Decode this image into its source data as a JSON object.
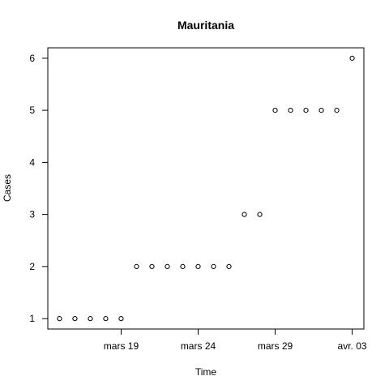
{
  "chart_data": {
    "type": "scatter",
    "title": "Mauritania",
    "xlabel": "Time",
    "ylabel": "Cases",
    "x": [
      "2020-03-15",
      "2020-03-16",
      "2020-03-17",
      "2020-03-18",
      "2020-03-19",
      "2020-03-20",
      "2020-03-21",
      "2020-03-22",
      "2020-03-23",
      "2020-03-24",
      "2020-03-25",
      "2020-03-26",
      "2020-03-27",
      "2020-03-28",
      "2020-03-29",
      "2020-03-30",
      "2020-03-31",
      "2020-04-01",
      "2020-04-02",
      "2020-04-03"
    ],
    "y": [
      1,
      1,
      1,
      1,
      1,
      2,
      2,
      2,
      2,
      2,
      2,
      2,
      3,
      3,
      5,
      5,
      5,
      5,
      5,
      6
    ],
    "xlim": [
      "2020-03-14.24",
      "2020-04-03.76"
    ],
    "ylim": [
      0.8,
      6.2
    ],
    "x_ticks": [
      {
        "date": "2020-03-19",
        "label": "mars 19"
      },
      {
        "date": "2020-03-24",
        "label": "mars 24"
      },
      {
        "date": "2020-03-29",
        "label": "mars 29"
      },
      {
        "date": "2020-04-03",
        "label": "avr. 03"
      }
    ],
    "y_ticks": [
      1,
      2,
      3,
      4,
      5,
      6
    ],
    "grid": false,
    "legend": "none",
    "marker": "open-circle",
    "color": "#000000"
  }
}
